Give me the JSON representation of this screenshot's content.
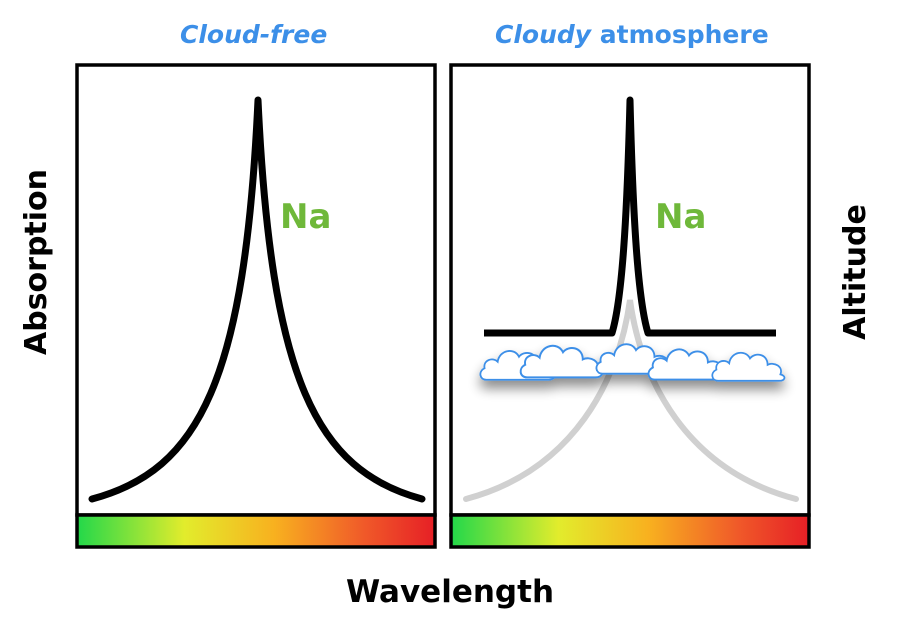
{
  "panels": [
    {
      "title_emphasis": "Cloud-free",
      "title_rest": "",
      "element_label": "Na"
    },
    {
      "title_emphasis": "Cloudy",
      "title_rest": " atmosphere",
      "element_label": "Na"
    }
  ],
  "axes": {
    "left_label": "Absorption",
    "right_label": "Altitude",
    "bottom_label": "Wavelength"
  },
  "colors": {
    "title": "#3c8fe8",
    "element_label": "#6fb83a",
    "cloud_outline": "#3c8fe8",
    "line": "#000000",
    "hidden_line": "#d0d0d0",
    "spectrum": [
      "#22d84a",
      "#d8e82c",
      "#f5a21e",
      "#f0412a",
      "#e61f26"
    ]
  },
  "icons": [
    "cloud-icon"
  ]
}
